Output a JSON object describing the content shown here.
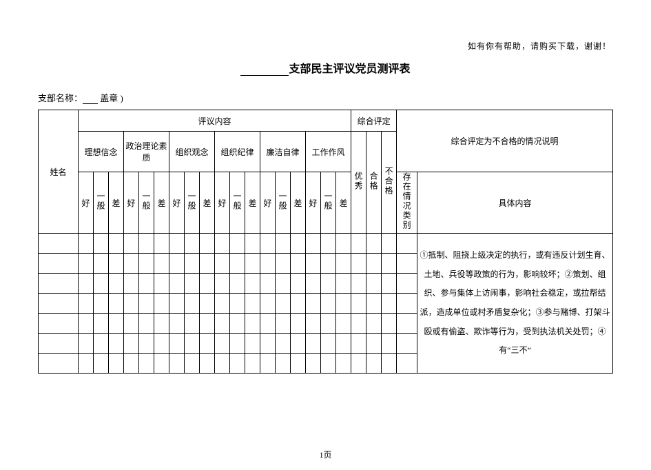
{
  "top_note": "如有你有帮助，请购买下载，谢谢！",
  "title_suffix": "支部民主评议党员测评表",
  "branch_label_prefix": "支部名称：",
  "branch_label_suffix": "盖章 )",
  "headers": {
    "name": "姓名",
    "content": "评议内容",
    "overall": "综合评定",
    "fail_explain": "综合评定为不合格的情况说明",
    "detail": "具体内容"
  },
  "criteria": [
    "理想信念",
    "政治理论素质",
    "组织观念",
    "组织纪律",
    "廉洁自律",
    "工作作风"
  ],
  "scale": {
    "good": "好",
    "avg": "一般",
    "bad": "差"
  },
  "overall_levels": {
    "excellent": "优秀",
    "pass": "合格",
    "fail": "不合格"
  },
  "situation_label": "存在情况类别",
  "fail_text": "①抵制、阻挠上级决定的执行，或有违反计划生育、土地、兵役等政策的行为，影响较坏；②策划、组织、参与集体上访闹事，影响社会稳定，或拉帮结派，造成单位或村矛盾复杂化；③参与赌博、打架斗殴或有偷盗、欺诈等行为，受到执法机关处罚；④有“三不”",
  "page_number": "1页",
  "colors": {
    "text": "#000000",
    "border": "#000000",
    "background": "#ffffff"
  },
  "data_rows": 7
}
